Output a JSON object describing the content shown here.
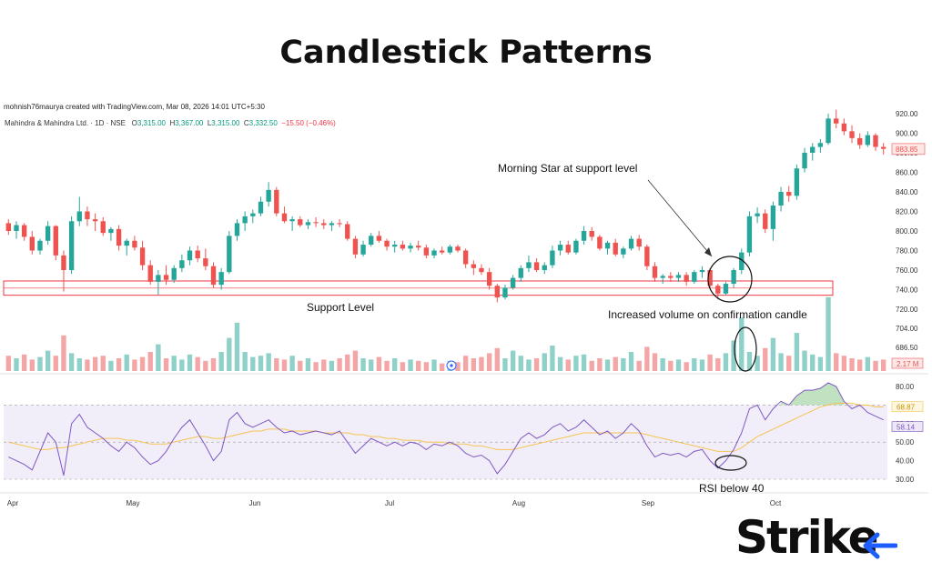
{
  "page_title": "Candlestick Patterns",
  "credit": "mohnish76maurya created with TradingView.com, Mar 08, 2026 14:01 UTC+5:30",
  "symbol": {
    "name": "Mahindra & Mahindra Ltd. · 1D · NSE",
    "o_label": "O",
    "o": "3,315.00",
    "h_label": "H",
    "h": "3,367.00",
    "l_label": "L",
    "l": "3,315.00",
    "c_label": "C",
    "c": "3,332.50",
    "change": "−15.50 (−0.46%)"
  },
  "annotations": {
    "morning_star": "Morning Star at support level",
    "support": "Support Level",
    "volume": "Increased volume on confirmation candle",
    "rsi": "RSI below 40"
  },
  "logo": "Strike",
  "colors": {
    "up": "#26a69a",
    "down": "#ef5350",
    "rsi_line": "#7e57c2",
    "rsi_ma": "#f5c451",
    "support_box": "#f23645",
    "vol_up": "#8fd1c9",
    "vol_down": "#f4a6a6"
  },
  "chart_data": {
    "type": "candlestick",
    "x_labels": [
      "Apr",
      "May",
      "Jun",
      "Jul",
      "Aug",
      "Sep",
      "Oct"
    ],
    "price_axis": {
      "ticks": [
        "920.00",
        "900.00",
        "880.00",
        "860.00",
        "840.00",
        "820.00",
        "800.00",
        "780.00",
        "760.00",
        "740.00",
        "720.00"
      ],
      "last_price": "883.85"
    },
    "volume_axis": {
      "ticks": [
        "704.00",
        "686.50"
      ],
      "last_value": "2.17 M"
    },
    "rsi_axis": {
      "ticks": [
        "80.00",
        "70.00",
        "60.00",
        "50.00",
        "40.00",
        "30.00"
      ],
      "rsi_value": "58.14",
      "ma_value": "68.87"
    },
    "support_level": [
      738,
      747
    ],
    "candles": [
      {
        "o": 808,
        "h": 812,
        "l": 796,
        "c": 800
      },
      {
        "o": 800,
        "h": 810,
        "l": 792,
        "c": 806
      },
      {
        "o": 806,
        "h": 808,
        "l": 790,
        "c": 794
      },
      {
        "o": 794,
        "h": 800,
        "l": 776,
        "c": 780
      },
      {
        "o": 780,
        "h": 792,
        "l": 776,
        "c": 790
      },
      {
        "o": 790,
        "h": 810,
        "l": 786,
        "c": 805
      },
      {
        "o": 805,
        "h": 806,
        "l": 770,
        "c": 775
      },
      {
        "o": 775,
        "h": 780,
        "l": 738,
        "c": 760
      },
      {
        "o": 760,
        "h": 815,
        "l": 756,
        "c": 810
      },
      {
        "o": 810,
        "h": 835,
        "l": 805,
        "c": 820
      },
      {
        "o": 820,
        "h": 825,
        "l": 805,
        "c": 812
      },
      {
        "o": 812,
        "h": 818,
        "l": 800,
        "c": 810
      },
      {
        "o": 810,
        "h": 814,
        "l": 795,
        "c": 798
      },
      {
        "o": 798,
        "h": 804,
        "l": 790,
        "c": 802
      },
      {
        "o": 802,
        "h": 806,
        "l": 780,
        "c": 785
      },
      {
        "o": 785,
        "h": 792,
        "l": 775,
        "c": 790
      },
      {
        "o": 790,
        "h": 795,
        "l": 780,
        "c": 783
      },
      {
        "o": 783,
        "h": 790,
        "l": 760,
        "c": 765
      },
      {
        "o": 765,
        "h": 770,
        "l": 745,
        "c": 748
      },
      {
        "o": 748,
        "h": 760,
        "l": 735,
        "c": 755
      },
      {
        "o": 755,
        "h": 765,
        "l": 745,
        "c": 750
      },
      {
        "o": 750,
        "h": 765,
        "l": 747,
        "c": 762
      },
      {
        "o": 762,
        "h": 776,
        "l": 758,
        "c": 770
      },
      {
        "o": 770,
        "h": 784,
        "l": 765,
        "c": 780
      },
      {
        "o": 780,
        "h": 785,
        "l": 768,
        "c": 772
      },
      {
        "o": 772,
        "h": 782,
        "l": 760,
        "c": 764
      },
      {
        "o": 764,
        "h": 768,
        "l": 742,
        "c": 745
      },
      {
        "o": 745,
        "h": 762,
        "l": 740,
        "c": 758
      },
      {
        "o": 758,
        "h": 800,
        "l": 756,
        "c": 795
      },
      {
        "o": 795,
        "h": 812,
        "l": 790,
        "c": 808
      },
      {
        "o": 808,
        "h": 820,
        "l": 800,
        "c": 815
      },
      {
        "o": 815,
        "h": 822,
        "l": 808,
        "c": 818
      },
      {
        "o": 818,
        "h": 835,
        "l": 815,
        "c": 830
      },
      {
        "o": 830,
        "h": 850,
        "l": 825,
        "c": 842
      },
      {
        "o": 842,
        "h": 845,
        "l": 815,
        "c": 818
      },
      {
        "o": 818,
        "h": 825,
        "l": 808,
        "c": 810
      },
      {
        "o": 810,
        "h": 815,
        "l": 800,
        "c": 812
      },
      {
        "o": 812,
        "h": 815,
        "l": 804,
        "c": 806
      },
      {
        "o": 806,
        "h": 812,
        "l": 802,
        "c": 809
      },
      {
        "o": 809,
        "h": 814,
        "l": 804,
        "c": 808
      },
      {
        "o": 808,
        "h": 812,
        "l": 802,
        "c": 806
      },
      {
        "o": 806,
        "h": 810,
        "l": 800,
        "c": 808
      },
      {
        "o": 808,
        "h": 812,
        "l": 804,
        "c": 807
      },
      {
        "o": 807,
        "h": 810,
        "l": 790,
        "c": 792
      },
      {
        "o": 792,
        "h": 795,
        "l": 772,
        "c": 776
      },
      {
        "o": 776,
        "h": 790,
        "l": 774,
        "c": 786
      },
      {
        "o": 786,
        "h": 798,
        "l": 784,
        "c": 795
      },
      {
        "o": 795,
        "h": 800,
        "l": 788,
        "c": 790
      },
      {
        "o": 790,
        "h": 792,
        "l": 780,
        "c": 784
      },
      {
        "o": 784,
        "h": 790,
        "l": 778,
        "c": 786
      },
      {
        "o": 786,
        "h": 790,
        "l": 780,
        "c": 782
      },
      {
        "o": 782,
        "h": 788,
        "l": 778,
        "c": 785
      },
      {
        "o": 785,
        "h": 790,
        "l": 780,
        "c": 783
      },
      {
        "o": 783,
        "h": 786,
        "l": 772,
        "c": 775
      },
      {
        "o": 775,
        "h": 782,
        "l": 772,
        "c": 780
      },
      {
        "o": 780,
        "h": 784,
        "l": 776,
        "c": 778
      },
      {
        "o": 778,
        "h": 786,
        "l": 776,
        "c": 784
      },
      {
        "o": 784,
        "h": 786,
        "l": 778,
        "c": 780
      },
      {
        "o": 780,
        "h": 782,
        "l": 762,
        "c": 766
      },
      {
        "o": 766,
        "h": 770,
        "l": 755,
        "c": 762
      },
      {
        "o": 762,
        "h": 766,
        "l": 755,
        "c": 758
      },
      {
        "o": 758,
        "h": 762,
        "l": 740,
        "c": 744
      },
      {
        "o": 744,
        "h": 746,
        "l": 727,
        "c": 732
      },
      {
        "o": 732,
        "h": 745,
        "l": 730,
        "c": 742
      },
      {
        "o": 742,
        "h": 755,
        "l": 740,
        "c": 752
      },
      {
        "o": 752,
        "h": 765,
        "l": 748,
        "c": 762
      },
      {
        "o": 762,
        "h": 775,
        "l": 758,
        "c": 768
      },
      {
        "o": 768,
        "h": 772,
        "l": 758,
        "c": 760
      },
      {
        "o": 760,
        "h": 768,
        "l": 756,
        "c": 765
      },
      {
        "o": 765,
        "h": 785,
        "l": 762,
        "c": 780
      },
      {
        "o": 780,
        "h": 790,
        "l": 775,
        "c": 786
      },
      {
        "o": 786,
        "h": 790,
        "l": 776,
        "c": 778
      },
      {
        "o": 778,
        "h": 792,
        "l": 776,
        "c": 790
      },
      {
        "o": 790,
        "h": 805,
        "l": 786,
        "c": 800
      },
      {
        "o": 800,
        "h": 804,
        "l": 790,
        "c": 794
      },
      {
        "o": 794,
        "h": 796,
        "l": 780,
        "c": 782
      },
      {
        "o": 782,
        "h": 790,
        "l": 776,
        "c": 788
      },
      {
        "o": 788,
        "h": 792,
        "l": 774,
        "c": 776
      },
      {
        "o": 776,
        "h": 784,
        "l": 772,
        "c": 782
      },
      {
        "o": 782,
        "h": 795,
        "l": 780,
        "c": 792
      },
      {
        "o": 792,
        "h": 796,
        "l": 780,
        "c": 784
      },
      {
        "o": 784,
        "h": 786,
        "l": 760,
        "c": 764
      },
      {
        "o": 764,
        "h": 768,
        "l": 748,
        "c": 752
      },
      {
        "o": 752,
        "h": 756,
        "l": 746,
        "c": 754
      },
      {
        "o": 754,
        "h": 758,
        "l": 748,
        "c": 752
      },
      {
        "o": 752,
        "h": 758,
        "l": 748,
        "c": 755
      },
      {
        "o": 755,
        "h": 758,
        "l": 744,
        "c": 748
      },
      {
        "o": 748,
        "h": 760,
        "l": 746,
        "c": 758
      },
      {
        "o": 758,
        "h": 764,
        "l": 752,
        "c": 760
      },
      {
        "o": 760,
        "h": 762,
        "l": 742,
        "c": 744
      },
      {
        "o": 744,
        "h": 746,
        "l": 730,
        "c": 736
      },
      {
        "o": 736,
        "h": 748,
        "l": 734,
        "c": 746
      },
      {
        "o": 746,
        "h": 762,
        "l": 742,
        "c": 760
      },
      {
        "o": 760,
        "h": 782,
        "l": 756,
        "c": 778
      },
      {
        "o": 778,
        "h": 820,
        "l": 774,
        "c": 815
      },
      {
        "o": 815,
        "h": 824,
        "l": 808,
        "c": 818
      },
      {
        "o": 818,
        "h": 822,
        "l": 798,
        "c": 802
      },
      {
        "o": 802,
        "h": 830,
        "l": 790,
        "c": 826
      },
      {
        "o": 826,
        "h": 845,
        "l": 820,
        "c": 840
      },
      {
        "o": 840,
        "h": 846,
        "l": 830,
        "c": 836
      },
      {
        "o": 836,
        "h": 868,
        "l": 832,
        "c": 864
      },
      {
        "o": 864,
        "h": 885,
        "l": 860,
        "c": 880
      },
      {
        "o": 880,
        "h": 890,
        "l": 872,
        "c": 886
      },
      {
        "o": 886,
        "h": 894,
        "l": 880,
        "c": 890
      },
      {
        "o": 890,
        "h": 920,
        "l": 888,
        "c": 915
      },
      {
        "o": 915,
        "h": 924,
        "l": 905,
        "c": 910
      },
      {
        "o": 910,
        "h": 915,
        "l": 898,
        "c": 902
      },
      {
        "o": 902,
        "h": 908,
        "l": 890,
        "c": 895
      },
      {
        "o": 895,
        "h": 900,
        "l": 884,
        "c": 888
      },
      {
        "o": 888,
        "h": 902,
        "l": 886,
        "c": 898
      },
      {
        "o": 898,
        "h": 900,
        "l": 882,
        "c": 886
      },
      {
        "o": 886,
        "h": 890,
        "l": 878,
        "c": 884
      }
    ],
    "volume": [
      1.2,
      1.0,
      1.3,
      0.9,
      1.1,
      1.6,
      1.2,
      2.8,
      1.4,
      1.0,
      0.9,
      1.1,
      1.2,
      0.8,
      1.0,
      1.3,
      0.9,
      1.1,
      1.5,
      2.1,
      1.0,
      1.2,
      0.9,
      1.3,
      1.1,
      0.8,
      1.0,
      1.5,
      2.6,
      3.8,
      1.5,
      1.1,
      1.2,
      1.4,
      1.0,
      0.9,
      1.2,
      0.8,
      1.0,
      0.7,
      0.9,
      0.8,
      1.0,
      1.3,
      1.6,
      1.0,
      0.9,
      1.1,
      0.8,
      1.0,
      0.7,
      0.9,
      0.8,
      0.7,
      0.9,
      0.6,
      0.8,
      0.7,
      1.2,
      1.0,
      1.1,
      1.4,
      1.8,
      1.0,
      1.6,
      1.2,
      0.9,
      1.0,
      1.4,
      2.0,
      1.1,
      0.9,
      1.2,
      1.3,
      0.8,
      1.0,
      0.9,
      1.1,
      1.0,
      1.5,
      0.8,
      1.9,
      1.4,
      1.0,
      0.8,
      0.9,
      0.7,
      1.0,
      0.9,
      1.3,
      1.0,
      1.4,
      2.4,
      4.2,
      1.5,
      1.2,
      1.8,
      2.6,
      1.4,
      1.2,
      3.0,
      1.6,
      1.3,
      1.1,
      5.8,
      1.4,
      1.2,
      1.0,
      0.9,
      1.1,
      0.8,
      0.9
    ],
    "rsi": [
      42,
      40,
      38,
      35,
      45,
      55,
      50,
      32,
      60,
      65,
      58,
      55,
      52,
      48,
      45,
      50,
      47,
      42,
      38,
      40,
      45,
      52,
      58,
      62,
      55,
      48,
      40,
      45,
      62,
      66,
      60,
      58,
      60,
      62,
      58,
      55,
      56,
      54,
      55,
      56,
      55,
      54,
      56,
      50,
      44,
      48,
      52,
      50,
      48,
      50,
      48,
      50,
      49,
      46,
      49,
      48,
      50,
      48,
      44,
      42,
      43,
      40,
      33,
      38,
      45,
      52,
      55,
      52,
      54,
      58,
      60,
      56,
      58,
      62,
      58,
      54,
      56,
      52,
      55,
      60,
      56,
      48,
      42,
      44,
      43,
      44,
      42,
      45,
      46,
      40,
      36,
      40,
      46,
      55,
      68,
      70,
      62,
      68,
      72,
      70,
      75,
      78,
      78,
      79,
      82,
      80,
      72,
      68,
      70,
      66,
      64,
      62
    ],
    "rsi_ma": [
      50,
      49,
      48,
      47,
      46,
      46,
      47,
      47,
      48,
      49,
      50,
      51,
      52,
      52,
      52,
      51,
      51,
      50,
      49,
      49,
      49,
      50,
      51,
      52,
      53,
      53,
      52,
      52,
      53,
      54,
      55,
      56,
      56,
      57,
      57,
      57,
      56,
      56,
      56,
      56,
      55,
      55,
      55,
      55,
      54,
      54,
      53,
      53,
      52,
      52,
      51,
      51,
      51,
      50,
      50,
      50,
      49,
      49,
      49,
      48,
      48,
      47,
      46,
      46,
      46,
      47,
      48,
      49,
      50,
      51,
      52,
      53,
      54,
      55,
      55,
      55,
      55,
      55,
      55,
      55,
      55,
      54,
      53,
      52,
      51,
      50,
      49,
      48,
      47,
      46,
      45,
      45,
      45,
      47,
      50,
      53,
      55,
      57,
      59,
      61,
      63,
      65,
      67,
      69,
      70,
      71,
      71,
      71,
      70,
      70,
      69,
      69
    ]
  }
}
